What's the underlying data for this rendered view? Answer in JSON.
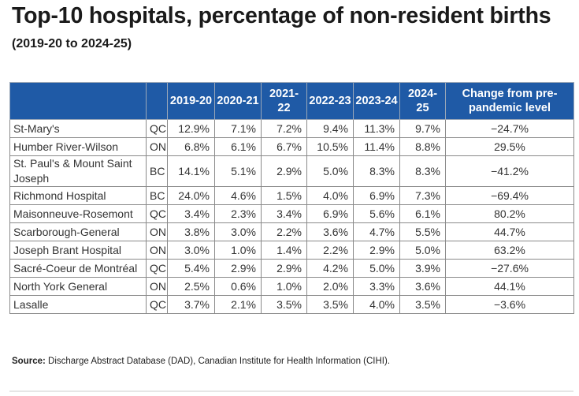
{
  "title": "Top-10 hospitals, percentage of non-resident births",
  "subtitle": "(2019-20 to 2024-25)",
  "table": {
    "headers": [
      "2019-20",
      "2020-21",
      "2021-22",
      "2022-23",
      "2023-24",
      "2024-25",
      "Change from pre-pandemic level"
    ],
    "rows": [
      {
        "name": "St-Mary's",
        "prov": "QC",
        "v": [
          "12.9%",
          "7.1%",
          "7.2%",
          "9.4%",
          "11.3%",
          "9.7%"
        ],
        "change": "−24.7%"
      },
      {
        "name": "Humber River-Wilson",
        "prov": "ON",
        "v": [
          "6.8%",
          "6.1%",
          "6.7%",
          "10.5%",
          "11.4%",
          "8.8%"
        ],
        "change": "29.5%"
      },
      {
        "name": "St. Paul's & Mount Saint Joseph",
        "prov": "BC",
        "v": [
          "14.1%",
          "5.1%",
          "2.9%",
          "5.0%",
          "8.3%",
          "8.3%"
        ],
        "change": "−41.2%"
      },
      {
        "name": "Richmond Hospital",
        "prov": "BC",
        "v": [
          "24.0%",
          "4.6%",
          "1.5%",
          "4.0%",
          "6.9%",
          "7.3%"
        ],
        "change": "−69.4%"
      },
      {
        "name": "Maisonneuve-Rosemont",
        "prov": "QC",
        "v": [
          "3.4%",
          "2.3%",
          "3.4%",
          "6.9%",
          "5.6%",
          "6.1%"
        ],
        "change": "80.2%"
      },
      {
        "name": "Scarborough-General",
        "prov": "ON",
        "v": [
          "3.8%",
          "3.0%",
          "2.2%",
          "3.6%",
          "4.7%",
          "5.5%"
        ],
        "change": "44.7%"
      },
      {
        "name": "Joseph Brant Hospital",
        "prov": "ON",
        "v": [
          "3.0%",
          "1.0%",
          "1.4%",
          "2.2%",
          "2.9%",
          "5.0%"
        ],
        "change": "63.2%"
      },
      {
        "name": "Sacré-Coeur de Montréal",
        "prov": "QC",
        "v": [
          "5.4%",
          "2.9%",
          "2.9%",
          "4.2%",
          "5.0%",
          "3.9%"
        ],
        "change": "−27.6%"
      },
      {
        "name": "North York General",
        "prov": "ON",
        "v": [
          "2.5%",
          "0.6%",
          "1.0%",
          "2.0%",
          "3.3%",
          "3.6%"
        ],
        "change": "44.1%"
      },
      {
        "name": "Lasalle",
        "prov": "QC",
        "v": [
          "3.7%",
          "2.1%",
          "3.5%",
          "3.5%",
          "4.0%",
          "3.5%"
        ],
        "change": "−3.6%"
      }
    ]
  },
  "source": {
    "label": "Source:",
    "text": " Discharge Abstract Database (DAD), Canadian Institute for Health Information (CIHI)."
  },
  "colors": {
    "header_bg": "#1f5aa6",
    "header_text": "#ffffff"
  }
}
